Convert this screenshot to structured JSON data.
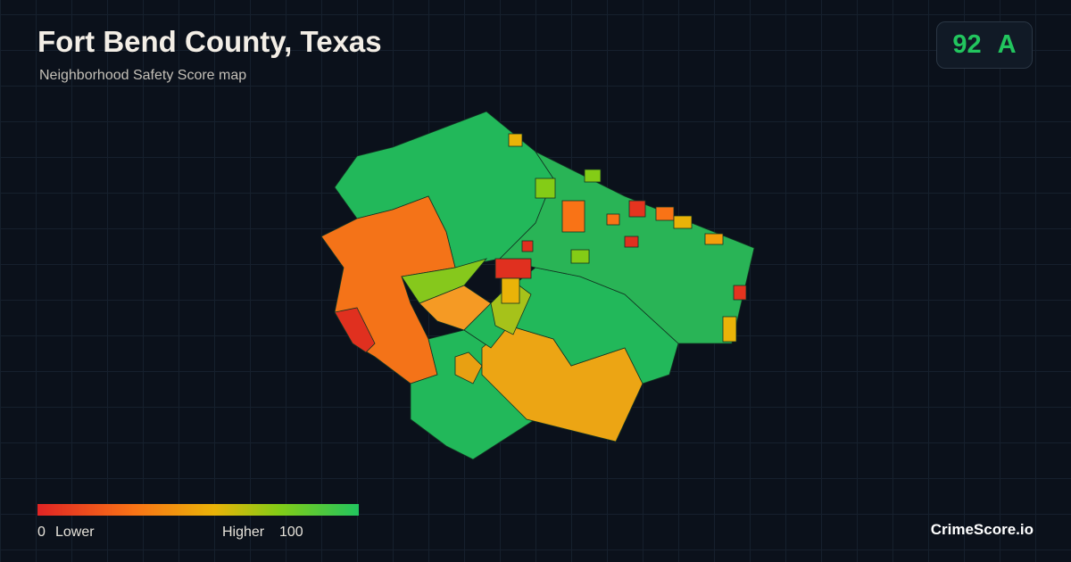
{
  "header": {
    "title": "Fort Bend County, Texas",
    "subtitle": "Neighborhood Safety Score map"
  },
  "badge": {
    "score": 92,
    "grade": "A"
  },
  "legend": {
    "min": 0,
    "min_label": "Lower",
    "max_label": "Higher",
    "max": 100
  },
  "brand": "CrimeScore.io"
}
